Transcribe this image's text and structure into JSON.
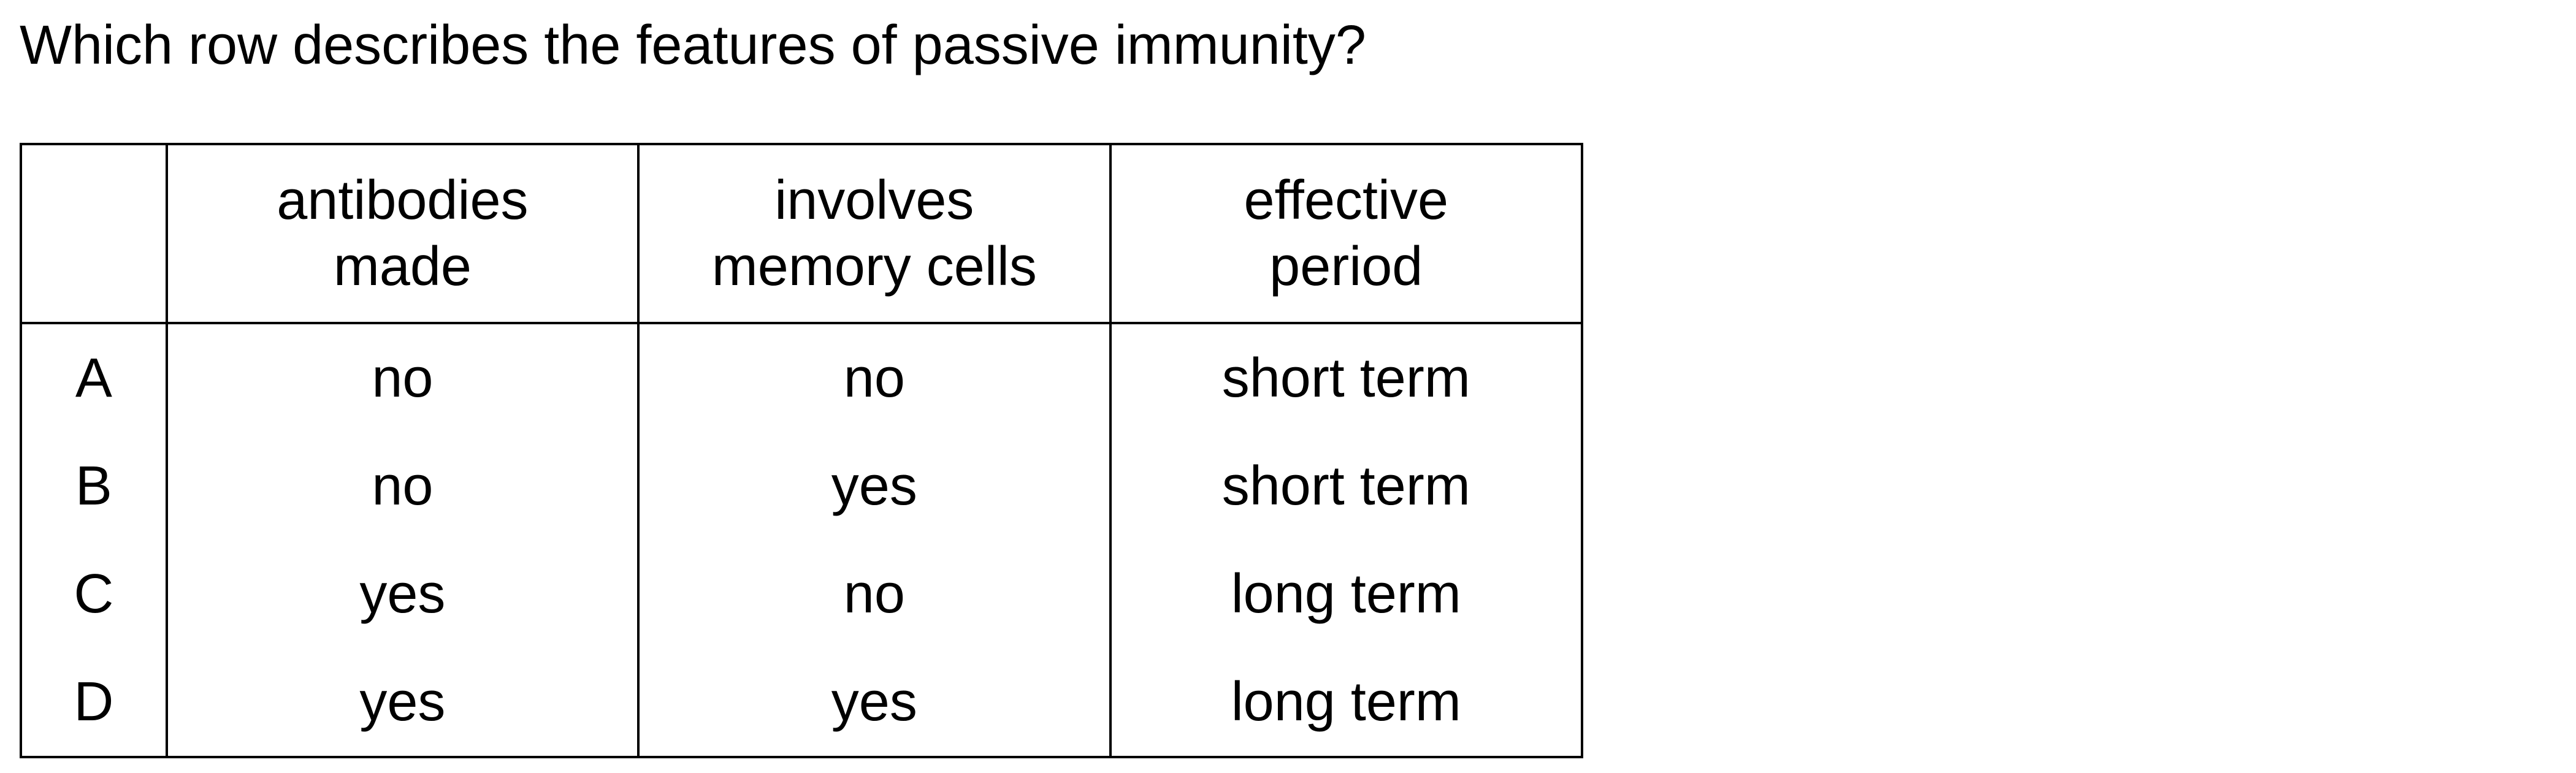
{
  "question": "Which row describes the features of passive immunity?",
  "table": {
    "headers": [
      {
        "line1": "",
        "line2": ""
      },
      {
        "line1": "antibodies",
        "line2": "made"
      },
      {
        "line1": "involves",
        "line2": "memory cells"
      },
      {
        "line1": "effective",
        "line2": "period"
      }
    ],
    "rows": [
      {
        "letter": "A",
        "antibodies": "no",
        "memory": "no",
        "period": "short term"
      },
      {
        "letter": "B",
        "antibodies": "no",
        "memory": "yes",
        "period": "short term"
      },
      {
        "letter": "C",
        "antibodies": "yes",
        "memory": "no",
        "period": "long term"
      },
      {
        "letter": "D",
        "antibodies": "yes",
        "memory": "yes",
        "period": "long term"
      }
    ]
  }
}
